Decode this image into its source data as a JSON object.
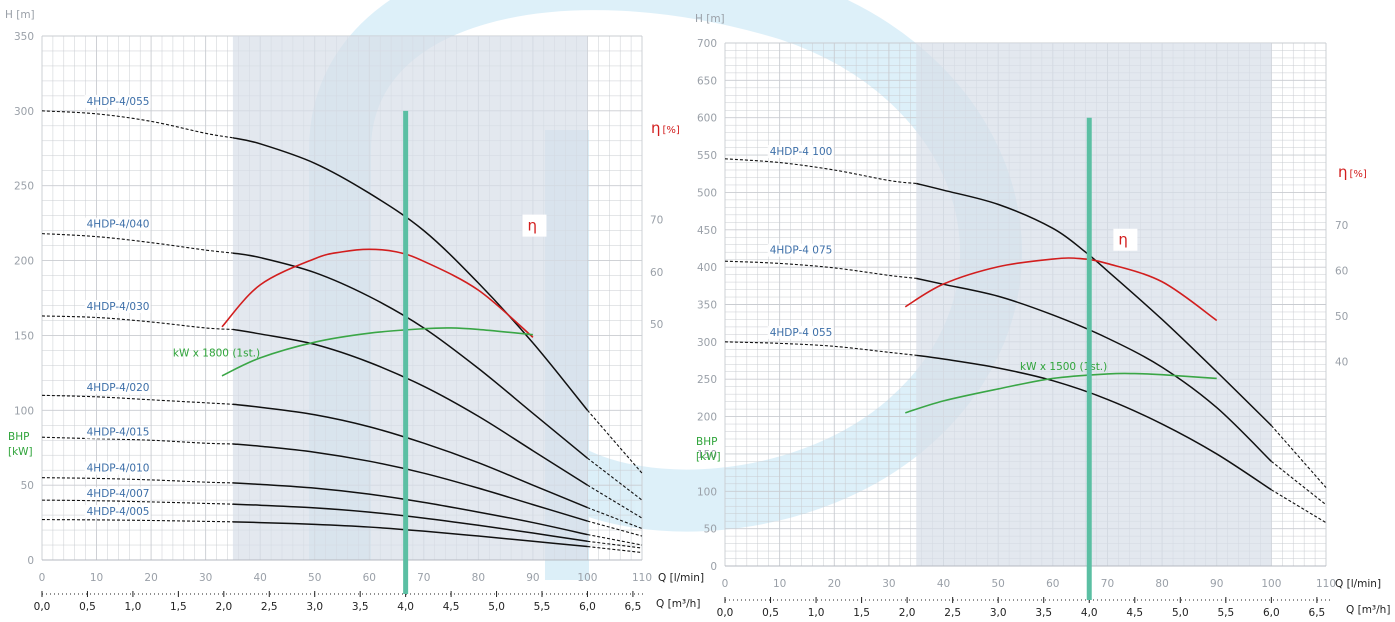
{
  "colors": {
    "head_curve": "#111111",
    "efficiency": "#d21e1e",
    "power": "#3aa646",
    "duty_line": "#5bbfa3",
    "operating_range": "#d7dee8",
    "grid": "#c9ccd1",
    "curve_label": "#3d6fa8",
    "watermark": "#d6ecf6"
  },
  "chart_data": [
    {
      "type": "line",
      "title": "",
      "ylabel": "H [m]",
      "xlabel": "Q [l/min]",
      "xlabel_secondary": "Q [m³/h]",
      "ylim": [
        0,
        350
      ],
      "xlim": [
        0,
        110
      ],
      "x_ticks": [
        "0",
        "10",
        "20",
        "30",
        "40",
        "50",
        "60",
        "70",
        "80",
        "90",
        "100",
        "110"
      ],
      "y_ticks": [
        "0",
        "50",
        "100",
        "150",
        "200",
        "250",
        "300",
        "350"
      ],
      "q_m3h_ticks": [
        "0,0",
        "0,5",
        "1,0",
        "1,5",
        "2,0",
        "2,5",
        "3,0",
        "3,5",
        "4,0",
        "4,5",
        "5,0",
        "5,5",
        "6,0",
        "6,5"
      ],
      "grid": true,
      "operating_range": [
        35,
        100
      ],
      "duty_point_m3h": 4.0,
      "duty_line_top": 300,
      "efficiency_axis": {
        "label_symbol": "η",
        "label_unit": "[%]",
        "ticks": [
          50,
          60,
          70
        ],
        "tick_labels": [
          "50",
          "60",
          "70"
        ],
        "range": [
          5,
          105
        ]
      },
      "power_axis_label": [
        "BHP",
        "[kW]"
      ],
      "series": [
        {
          "name": "4HDP-4/055",
          "label_at": [
            8,
            304
          ],
          "points": [
            [
              0,
              300
            ],
            [
              10,
              298
            ],
            [
              20,
              293
            ],
            [
              30,
              285
            ],
            [
              35,
              282
            ],
            [
              40,
              278
            ],
            [
              50,
              265
            ],
            [
              60,
              245
            ],
            [
              70,
              220
            ],
            [
              80,
              185
            ],
            [
              90,
              145
            ],
            [
              100,
              100
            ],
            [
              110,
              58
            ]
          ]
        },
        {
          "name": "4HDP-4/040",
          "label_at": [
            8,
            222
          ],
          "points": [
            [
              0,
              218
            ],
            [
              10,
              216
            ],
            [
              20,
              212
            ],
            [
              30,
              207
            ],
            [
              35,
              205
            ],
            [
              40,
              202
            ],
            [
              50,
              192
            ],
            [
              60,
              176
            ],
            [
              70,
              155
            ],
            [
              80,
              128
            ],
            [
              90,
              98
            ],
            [
              100,
              68
            ],
            [
              110,
              40
            ]
          ]
        },
        {
          "name": "4HDP-4/030",
          "label_at": [
            8,
            167
          ],
          "points": [
            [
              0,
              163
            ],
            [
              10,
              162
            ],
            [
              20,
              159
            ],
            [
              30,
              155
            ],
            [
              35,
              154
            ],
            [
              40,
              151
            ],
            [
              50,
              144
            ],
            [
              60,
              132
            ],
            [
              70,
              116
            ],
            [
              80,
              96
            ],
            [
              90,
              73
            ],
            [
              100,
              50
            ],
            [
              110,
              28
            ]
          ]
        },
        {
          "name": "4HDP-4/020",
          "label_at": [
            8,
            113
          ],
          "points": [
            [
              0,
              110
            ],
            [
              10,
              109
            ],
            [
              20,
              107
            ],
            [
              30,
              105
            ],
            [
              35,
              104
            ],
            [
              40,
              102
            ],
            [
              50,
              97
            ],
            [
              60,
              89
            ],
            [
              70,
              78
            ],
            [
              80,
              65
            ],
            [
              90,
              50
            ],
            [
              100,
              35
            ],
            [
              110,
              21
            ]
          ]
        },
        {
          "name": "4HDP-4/015",
          "label_at": [
            8,
            83
          ],
          "points": [
            [
              0,
              82
            ],
            [
              10,
              81
            ],
            [
              20,
              80
            ],
            [
              30,
              78
            ],
            [
              35,
              77.5
            ],
            [
              40,
              76
            ],
            [
              50,
              72
            ],
            [
              60,
              66
            ],
            [
              70,
              58
            ],
            [
              80,
              48
            ],
            [
              90,
              37
            ],
            [
              100,
              26
            ],
            [
              110,
              16
            ]
          ]
        },
        {
          "name": "4HDP-4/010",
          "label_at": [
            8,
            59
          ],
          "points": [
            [
              0,
              55
            ],
            [
              10,
              54.5
            ],
            [
              20,
              53.5
            ],
            [
              30,
              52
            ],
            [
              35,
              51.5
            ],
            [
              40,
              50.5
            ],
            [
              50,
              48
            ],
            [
              60,
              44
            ],
            [
              70,
              38.5
            ],
            [
              80,
              32
            ],
            [
              90,
              25
            ],
            [
              100,
              17
            ],
            [
              110,
              10
            ]
          ]
        },
        {
          "name": "4HDP-4/007",
          "label_at": [
            8,
            42
          ],
          "points": [
            [
              0,
              40
            ],
            [
              10,
              39.6
            ],
            [
              20,
              38.8
            ],
            [
              30,
              37.8
            ],
            [
              35,
              37.3
            ],
            [
              40,
              36.6
            ],
            [
              50,
              34.8
            ],
            [
              60,
              32
            ],
            [
              70,
              28
            ],
            [
              80,
              23.2
            ],
            [
              90,
              18
            ],
            [
              100,
              12.5
            ],
            [
              110,
              8
            ]
          ]
        },
        {
          "name": "4HDP-4/005",
          "label_at": [
            8,
            30
          ],
          "points": [
            [
              0,
              27
            ],
            [
              10,
              26.8
            ],
            [
              20,
              26.4
            ],
            [
              30,
              25.8
            ],
            [
              35,
              25.5
            ],
            [
              40,
              25
            ],
            [
              50,
              23.8
            ],
            [
              60,
              22
            ],
            [
              70,
              19.3
            ],
            [
              80,
              16
            ],
            [
              90,
              12.5
            ],
            [
              100,
              9
            ],
            [
              110,
              5
            ]
          ]
        }
      ],
      "efficiency_curve": {
        "label": "η",
        "label_at": [
          89,
          220
        ],
        "points": [
          [
            33,
            49.5
          ],
          [
            40,
            57.5
          ],
          [
            50,
            62.5
          ],
          [
            55,
            63.8
          ],
          [
            60,
            64.3
          ],
          [
            65,
            63.8
          ],
          [
            70,
            62
          ],
          [
            80,
            56.5
          ],
          [
            90,
            47.5
          ]
        ]
      },
      "power_curve": {
        "label": "kW x 1800 (1st.)",
        "label_at": [
          24,
          136
        ],
        "points": [
          [
            33,
            123
          ],
          [
            40,
            135
          ],
          [
            50,
            145.5
          ],
          [
            60,
            151.5
          ],
          [
            70,
            154.5
          ],
          [
            75,
            155
          ],
          [
            80,
            154
          ],
          [
            90,
            150.5
          ]
        ]
      }
    },
    {
      "type": "line",
      "title": "",
      "ylabel": "H [m]",
      "xlabel": "Q [l/min]",
      "xlabel_secondary": "Q [m³/h]",
      "ylim": [
        0,
        700
      ],
      "xlim": [
        0,
        110
      ],
      "x_ticks": [
        "0",
        "10",
        "20",
        "30",
        "40",
        "50",
        "60",
        "70",
        "80",
        "90",
        "100",
        "110"
      ],
      "y_ticks": [
        "0",
        "50",
        "100",
        "150",
        "200",
        "250",
        "300",
        "350",
        "400",
        "450",
        "500",
        "550",
        "600",
        "650",
        "700"
      ],
      "q_m3h_ticks": [
        "0,0",
        "0,5",
        "1,0",
        "1,5",
        "2,0",
        "2,5",
        "3,0",
        "3,5",
        "4,0",
        "4,5",
        "5,0",
        "5,5",
        "6,0",
        "6,5"
      ],
      "grid": true,
      "operating_range": [
        35,
        100
      ],
      "duty_point_m3h": 4.0,
      "duty_line_top": 600,
      "efficiency_axis": {
        "label_symbol": "η",
        "label_unit": "[%]",
        "ticks": [
          40,
          50,
          60,
          70
        ],
        "tick_labels": [
          "40",
          "50",
          "60",
          "70"
        ],
        "range": [
          -5,
          110
        ]
      },
      "power_axis_label": [
        "BHP",
        "[kW]"
      ],
      "series": [
        {
          "name": "4HDP-4 100",
          "label_at": [
            8,
            550
          ],
          "points": [
            [
              0,
              545
            ],
            [
              10,
              540
            ],
            [
              20,
              530
            ],
            [
              30,
              516
            ],
            [
              35,
              512
            ],
            [
              40,
              503
            ],
            [
              50,
              484
            ],
            [
              60,
              452
            ],
            [
              66,
              420
            ],
            [
              70,
              395
            ],
            [
              80,
              330
            ],
            [
              90,
              260
            ],
            [
              100,
              188
            ],
            [
              110,
              105
            ]
          ]
        },
        {
          "name": "4HDP-4 075",
          "label_at": [
            8,
            418
          ],
          "points": [
            [
              0,
              408
            ],
            [
              10,
              405
            ],
            [
              20,
              399
            ],
            [
              30,
              389
            ],
            [
              35,
              385
            ],
            [
              40,
              377
            ],
            [
              50,
              361
            ],
            [
              60,
              336
            ],
            [
              70,
              305
            ],
            [
              80,
              266
            ],
            [
              90,
              212
            ],
            [
              100,
              140
            ],
            [
              110,
              82
            ]
          ]
        },
        {
          "name": "4HDP-4 055",
          "label_at": [
            8,
            308
          ],
          "points": [
            [
              0,
              300
            ],
            [
              10,
              298
            ],
            [
              20,
              294
            ],
            [
              30,
              286
            ],
            [
              35,
              282
            ],
            [
              40,
              277
            ],
            [
              50,
              265
            ],
            [
              60,
              248
            ],
            [
              70,
              223
            ],
            [
              80,
              190
            ],
            [
              90,
              150
            ],
            [
              100,
              102
            ],
            [
              110,
              58
            ]
          ]
        }
      ],
      "efficiency_curve": {
        "label": "η",
        "label_at": [
          72,
          430
        ],
        "points": [
          [
            33,
            52
          ],
          [
            40,
            57
          ],
          [
            50,
            60.8
          ],
          [
            60,
            62.5
          ],
          [
            65,
            62.6
          ],
          [
            70,
            61.5
          ],
          [
            80,
            57.5
          ],
          [
            90,
            49
          ]
        ]
      },
      "power_curve": {
        "label": "kW x 1500 (1st.)",
        "label_at": [
          54,
          262
        ],
        "points": [
          [
            33,
            205
          ],
          [
            40,
            221
          ],
          [
            50,
            237
          ],
          [
            60,
            251
          ],
          [
            70,
            257
          ],
          [
            75,
            257.5
          ],
          [
            80,
            256
          ],
          [
            90,
            251
          ]
        ]
      }
    }
  ]
}
